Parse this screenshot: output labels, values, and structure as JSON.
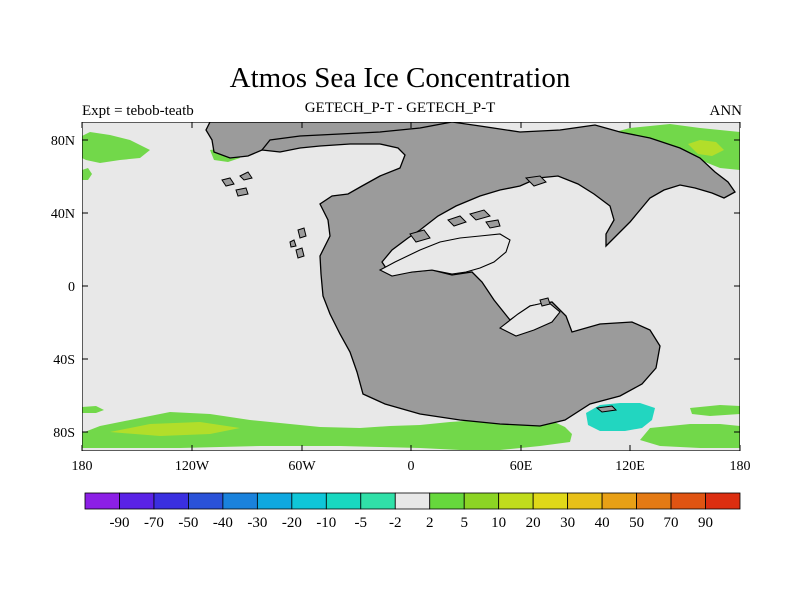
{
  "title": "Atmos Sea Ice Concentration",
  "subtitle": "GETECH_P-T - GETECH_P-T",
  "left_label": "Expt = tebob-teatb",
  "right_label": "ANN",
  "map": {
    "lat_labels": [
      "80N",
      "40N",
      "0",
      "40S",
      "80S"
    ],
    "lon_labels": [
      "180",
      "120W",
      "60W",
      "0",
      "60E",
      "120E",
      "180"
    ]
  },
  "colorbar": {
    "labels": [
      "-90",
      "-70",
      "-50",
      "-40",
      "-30",
      "-20",
      "-10",
      "-5",
      "-2",
      "2",
      "5",
      "10",
      "20",
      "30",
      "40",
      "50",
      "70",
      "90"
    ],
    "colors": [
      "#8c1fe6",
      "#5a22e6",
      "#3a2fe0",
      "#2a52d8",
      "#1a82dc",
      "#0fa8e0",
      "#0fc6d8",
      "#18d8c0",
      "#30e0a8",
      "#e8e8e8",
      "#66d83c",
      "#8cd424",
      "#c0dc1c",
      "#e0d818",
      "#e8c018",
      "#e8a016",
      "#e47a14",
      "#e05412",
      "#dc2e10"
    ]
  },
  "colors": {
    "ocean": "#e8e8e8",
    "land": "#9b9b9b",
    "ice_increase": "#72d84a",
    "ice_increase_strong": "#b2de2a",
    "ice_decrease": "#22d6c0"
  }
}
